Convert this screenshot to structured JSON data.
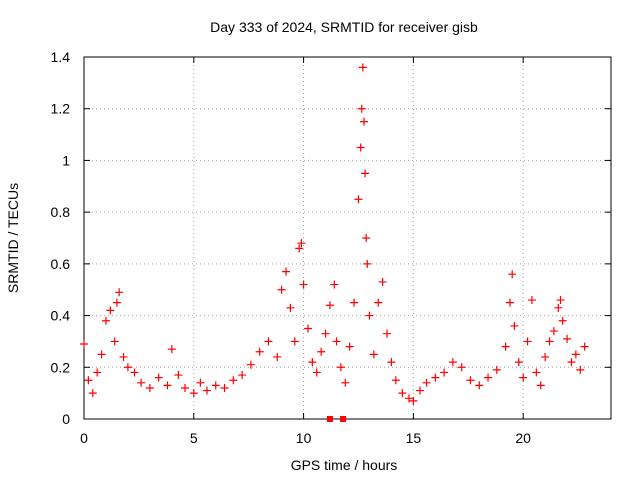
{
  "chart_data": {
    "type": "scatter",
    "title": "Day 333 of 2024, SRMTID for receiver gisb",
    "xlabel": "GPS time / hours",
    "ylabel": "SRMTID / TECUs",
    "xlim": [
      0,
      24
    ],
    "ylim": [
      0,
      1.4
    ],
    "xticks": [
      0,
      5,
      10,
      15,
      20
    ],
    "xtick_labels": [
      "0",
      "5",
      "10",
      "15",
      "20"
    ],
    "yticks": [
      0,
      0.2,
      0.4,
      0.6,
      0.8,
      1,
      1.2,
      1.4
    ],
    "ytick_labels": [
      "0",
      "0.2",
      "0.4",
      "0.6",
      "0.8",
      "1",
      "1.2",
      "1.4"
    ],
    "grid": true,
    "marker": "plus",
    "color": "#ff0000",
    "series": [
      {
        "name": "SRMTID",
        "x": [
          0.0,
          0.2,
          0.4,
          0.6,
          0.8,
          1.0,
          1.2,
          1.4,
          1.5,
          1.6,
          1.8,
          2.0,
          2.3,
          2.6,
          3.0,
          3.4,
          3.8,
          4.0,
          4.3,
          4.6,
          5.0,
          5.3,
          5.6,
          6.0,
          6.4,
          6.8,
          7.2,
          7.6,
          8.0,
          8.4,
          8.8,
          9.0,
          9.2,
          9.4,
          9.6,
          9.8,
          9.9,
          10.0,
          10.2,
          10.4,
          10.6,
          10.8,
          11.0,
          11.2,
          11.4,
          11.5,
          11.7,
          11.9,
          12.1,
          12.3,
          12.5,
          12.6,
          12.65,
          12.7,
          12.75,
          12.8,
          12.85,
          12.9,
          13.0,
          13.2,
          13.4,
          13.6,
          13.8,
          14.0,
          14.2,
          14.5,
          14.8,
          15.0,
          15.3,
          15.6,
          16.0,
          16.4,
          16.8,
          17.2,
          17.6,
          18.0,
          18.4,
          18.8,
          19.2,
          19.4,
          19.5,
          19.6,
          19.8,
          20.0,
          20.2,
          20.4,
          20.6,
          20.8,
          21.0,
          21.2,
          21.4,
          21.6,
          21.7,
          21.8,
          22.0,
          22.2,
          22.4,
          22.6,
          22.8
        ],
        "y": [
          0.29,
          0.15,
          0.1,
          0.18,
          0.25,
          0.38,
          0.42,
          0.3,
          0.45,
          0.49,
          0.24,
          0.2,
          0.18,
          0.14,
          0.12,
          0.16,
          0.13,
          0.27,
          0.17,
          0.12,
          0.1,
          0.14,
          0.11,
          0.13,
          0.12,
          0.15,
          0.17,
          0.21,
          0.26,
          0.3,
          0.24,
          0.5,
          0.57,
          0.43,
          0.3,
          0.66,
          0.68,
          0.52,
          0.35,
          0.22,
          0.18,
          0.26,
          0.33,
          0.44,
          0.52,
          0.3,
          0.2,
          0.14,
          0.28,
          0.45,
          0.85,
          1.05,
          1.2,
          1.36,
          1.15,
          0.95,
          0.7,
          0.6,
          0.4,
          0.25,
          0.45,
          0.53,
          0.33,
          0.22,
          0.15,
          0.1,
          0.08,
          0.07,
          0.11,
          0.14,
          0.16,
          0.18,
          0.22,
          0.2,
          0.15,
          0.13,
          0.16,
          0.19,
          0.28,
          0.45,
          0.56,
          0.36,
          0.22,
          0.16,
          0.3,
          0.46,
          0.18,
          0.13,
          0.24,
          0.3,
          0.34,
          0.43,
          0.46,
          0.38,
          0.31,
          0.22,
          0.25,
          0.19,
          0.28
        ]
      }
    ],
    "highlight_points": {
      "x": [
        11.2,
        11.8
      ],
      "y": [
        0,
        0
      ]
    }
  }
}
